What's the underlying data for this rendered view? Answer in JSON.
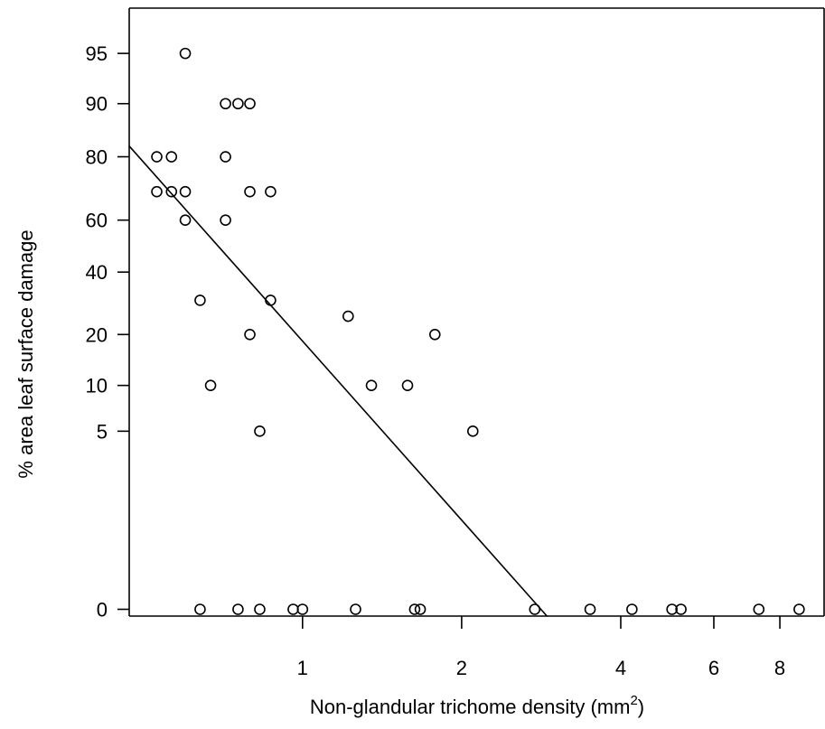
{
  "chart_data": {
    "type": "scatter",
    "title": "",
    "xlabel": "Non-glandular trichome density (mm",
    "xlabel_superscript": "2",
    "xlabel_suffix": ")",
    "ylabel": "% area leaf surface damage",
    "x_scale": "log",
    "y_scale": "logit",
    "xlim": [
      0.47,
      9.7
    ],
    "ylim": [
      -0.035,
      97.3
    ],
    "x_ticks": [
      {
        "value": 1,
        "label": "1"
      },
      {
        "value": 2,
        "label": "2"
      },
      {
        "value": 4,
        "label": "4"
      },
      {
        "value": 6,
        "label": "6"
      },
      {
        "value": 8,
        "label": "8"
      }
    ],
    "y_ticks": [
      {
        "value": 0,
        "label": "0"
      },
      {
        "value": 5,
        "label": "5"
      },
      {
        "value": 10,
        "label": "10"
      },
      {
        "value": 20,
        "label": "20"
      },
      {
        "value": 40,
        "label": "40"
      },
      {
        "value": 60,
        "label": "60"
      },
      {
        "value": 80,
        "label": "80"
      },
      {
        "value": 90,
        "label": "90"
      },
      {
        "value": 95,
        "label": "95"
      }
    ],
    "grid": false,
    "legend": "none",
    "points": [
      [
        0.53,
        80
      ],
      [
        0.53,
        70
      ],
      [
        0.565,
        80
      ],
      [
        0.565,
        70
      ],
      [
        0.6,
        95
      ],
      [
        0.6,
        70
      ],
      [
        0.6,
        60
      ],
      [
        0.64,
        30
      ],
      [
        0.64,
        0
      ],
      [
        0.67,
        10
      ],
      [
        0.715,
        90
      ],
      [
        0.715,
        80
      ],
      [
        0.715,
        60
      ],
      [
        0.755,
        90
      ],
      [
        0.755,
        0
      ],
      [
        0.795,
        90
      ],
      [
        0.795,
        70
      ],
      [
        0.795,
        20
      ],
      [
        0.83,
        5
      ],
      [
        0.83,
        0
      ],
      [
        0.87,
        70
      ],
      [
        0.87,
        30
      ],
      [
        0.96,
        0
      ],
      [
        1.0,
        0
      ],
      [
        1.22,
        25
      ],
      [
        1.26,
        0
      ],
      [
        1.35,
        10
      ],
      [
        1.58,
        10
      ],
      [
        1.63,
        0
      ],
      [
        1.67,
        0
      ],
      [
        1.78,
        20
      ],
      [
        2.1,
        5
      ],
      [
        2.75,
        0
      ],
      [
        3.5,
        0
      ],
      [
        4.2,
        0
      ],
      [
        5.0,
        0
      ],
      [
        5.2,
        0
      ],
      [
        7.3,
        0
      ],
      [
        8.7,
        0
      ]
    ],
    "fit_line": [
      [
        0.47,
        82.5
      ],
      [
        2.9,
        -0.035
      ]
    ]
  }
}
